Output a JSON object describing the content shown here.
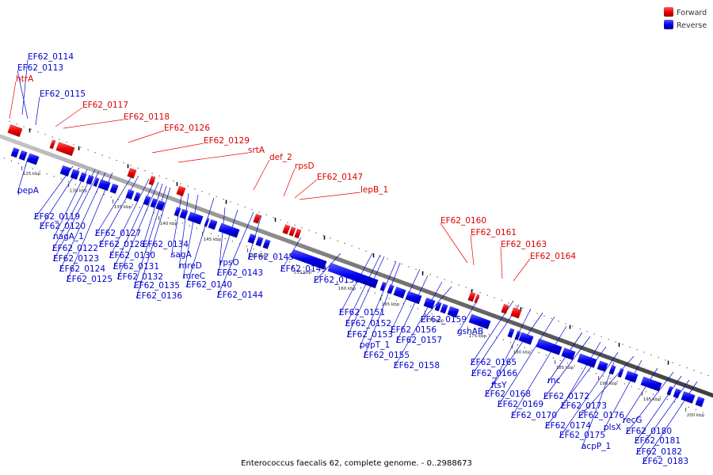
{
  "title": "Enterococcus faecalis 62, complete genome. - 0..2988673",
  "colors": {
    "forward": "#ee0000",
    "reverse": "#0000ee",
    "backbone": "#808080"
  },
  "legend": [
    {
      "label": "Forward",
      "color": "#ee0000"
    },
    {
      "label": "Reverse",
      "color": "#0000ee"
    }
  ],
  "ticks": [
    "125 kbp",
    "130 kbp",
    "135 kbp",
    "140 kbp",
    "145 kbp",
    "150 kbp",
    "155 kbp",
    "160 kbp",
    "165 kbp",
    "170 kbp",
    "175 kbp",
    "180 kbp",
    "185 kbp",
    "190 kbp",
    "195 kbp",
    "200 kbp"
  ],
  "forward_genes": [
    "htrA",
    "EF62_0117",
    "EF62_0118",
    "EF62_0126",
    "EF62_0129",
    "srtA",
    "def_2",
    "rpsD",
    "EF62_0147",
    "lepB_1",
    "EF62_0160",
    "EF62_0161",
    "EF62_0163",
    "EF62_0164"
  ],
  "reverse_genes": [
    "EF62_0114",
    "EF62_0113",
    "EF62_0115",
    "pepA",
    "EF62_0119",
    "EF62_0120",
    "nagA_1",
    "EF62_0122",
    "EF62_0123",
    "EF62_0124",
    "EF62_0125",
    "EF62_0127",
    "EF62_0128",
    "EF62_0130",
    "EF62_0131",
    "EF62_0132",
    "EF62_0134",
    "sagA",
    "mreD",
    "mreC",
    "EF62_0135",
    "EF62_0136",
    "EF62_0140",
    "rpsO",
    "EF62_0143",
    "EF62_0144",
    "EF62_0145",
    "EF62_0149",
    "EF62_0150",
    "EF62_0151",
    "EF62_0152",
    "EF62_0153",
    "pepT_1",
    "EF62_0155",
    "EF62_0156",
    "EF62_0157",
    "EF62_0158",
    "EF62_0159",
    "gshAB",
    "EF62_0165",
    "EF62_0166",
    "ftsY",
    "EF62_0168",
    "EF62_0169",
    "EF62_0170",
    "rnc",
    "EF62_0172",
    "EF62_0173",
    "EF62_0174",
    "EF62_0175",
    "EF62_0176",
    "plsX",
    "acpP_1",
    "recG",
    "EF62_0180",
    "EF62_0181",
    "EF62_0182",
    "EF62_0183"
  ]
}
